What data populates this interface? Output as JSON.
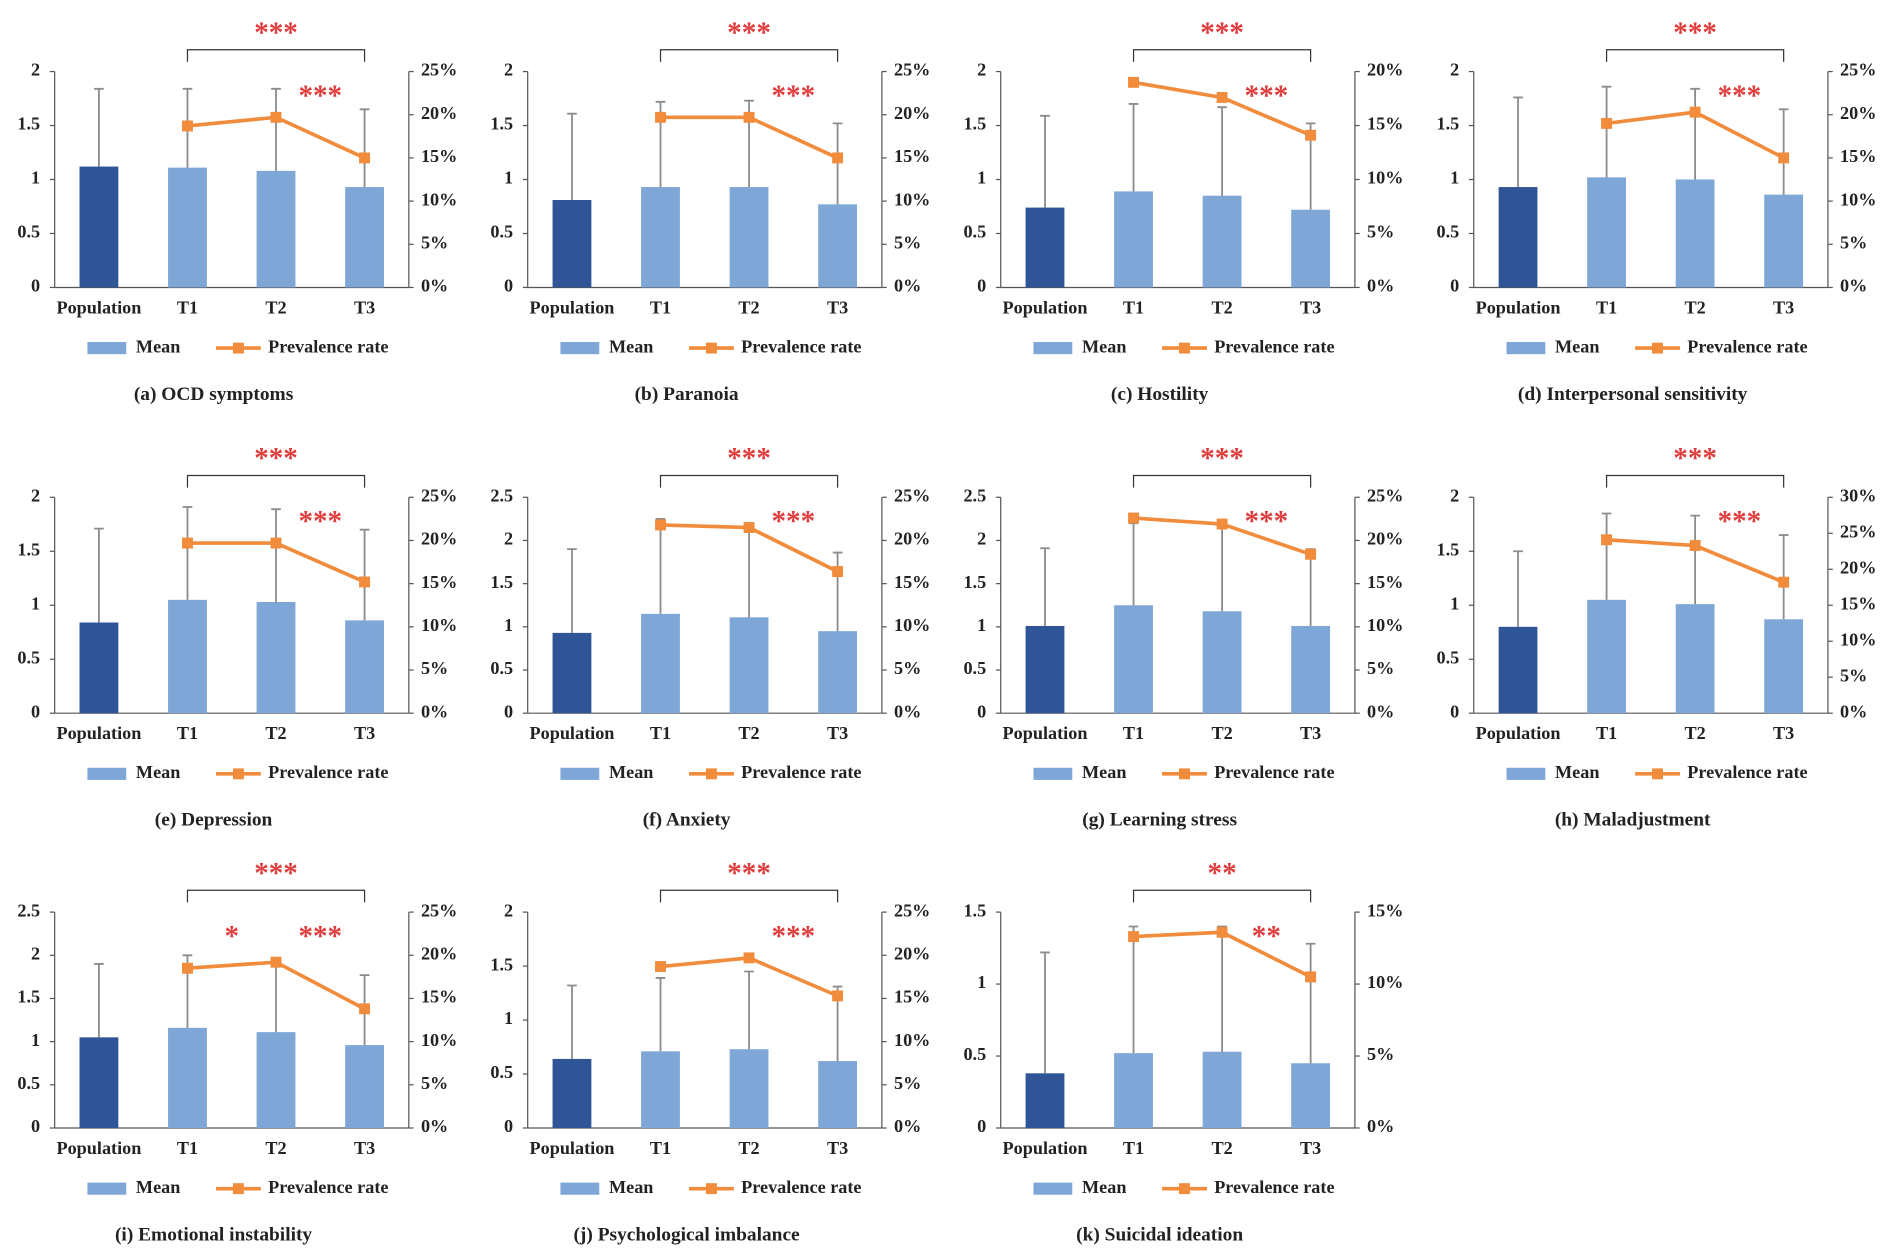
{
  "chart_data": [
    {
      "type": "bar",
      "title": "(a) OCD symptoms",
      "categories": [
        "Population",
        "T1",
        "T2",
        "T3"
      ],
      "series": [
        {
          "name": "Mean",
          "type": "bar",
          "color": "#7EA6D6",
          "colors": [
            "#2F5597",
            "#7EA6D6",
            "#7EA6D6",
            "#7EA6D6"
          ],
          "values": [
            1.12,
            1.11,
            1.08,
            0.93
          ],
          "errors": [
            0.72,
            0.73,
            0.76,
            0.72
          ]
        },
        {
          "name": "Prevalence rate",
          "type": "line",
          "axis": "y2",
          "color": "#F08C3C",
          "values": [
            null,
            18.7,
            19.7,
            15.0
          ]
        }
      ],
      "ylim": [
        0,
        2
      ],
      "yticks": [
        0,
        0.5,
        1,
        1.5,
        2
      ],
      "y2lim": [
        0,
        25
      ],
      "y2ticks": [
        {
          "value": 0,
          "label": "0%"
        },
        {
          "value": 5,
          "label": "5%"
        },
        {
          "value": 10,
          "label": "10%"
        },
        {
          "value": 15,
          "label": "15%"
        },
        {
          "value": 20,
          "label": "20%"
        },
        {
          "value": 25,
          "label": "25%"
        }
      ],
      "annotations": [
        {
          "text": "***",
          "from": "T1",
          "to": "T3",
          "style": "bracket"
        },
        {
          "text": "***",
          "from": "T2",
          "to": "T3",
          "style": "plain"
        }
      ]
    },
    {
      "type": "bar",
      "title": "(b) Paranoia",
      "categories": [
        "Population",
        "T1",
        "T2",
        "T3"
      ],
      "series": [
        {
          "name": "Mean",
          "type": "bar",
          "color": "#7EA6D6",
          "colors": [
            "#2F5597",
            "#7EA6D6",
            "#7EA6D6",
            "#7EA6D6"
          ],
          "values": [
            0.81,
            0.93,
            0.93,
            0.77
          ],
          "errors": [
            0.8,
            0.79,
            0.8,
            0.75
          ]
        },
        {
          "name": "Prevalence rate",
          "type": "line",
          "axis": "y2",
          "color": "#F08C3C",
          "values": [
            null,
            19.7,
            19.7,
            15.0
          ]
        }
      ],
      "ylim": [
        0,
        2
      ],
      "yticks": [
        0,
        0.5,
        1,
        1.5,
        2
      ],
      "y2lim": [
        0,
        25
      ],
      "y2ticks": [
        {
          "value": 0,
          "label": "0%"
        },
        {
          "value": 5,
          "label": "5%"
        },
        {
          "value": 10,
          "label": "10%"
        },
        {
          "value": 15,
          "label": "15%"
        },
        {
          "value": 20,
          "label": "20%"
        },
        {
          "value": 25,
          "label": "25%"
        }
      ],
      "annotations": [
        {
          "text": "***",
          "from": "T1",
          "to": "T3",
          "style": "bracket"
        },
        {
          "text": "***",
          "from": "T2",
          "to": "T3",
          "style": "plain"
        }
      ]
    },
    {
      "type": "bar",
      "title": "(c) Hostility",
      "categories": [
        "Population",
        "T1",
        "T2",
        "T3"
      ],
      "series": [
        {
          "name": "Mean",
          "type": "bar",
          "color": "#7EA6D6",
          "colors": [
            "#2F5597",
            "#7EA6D6",
            "#7EA6D6",
            "#7EA6D6"
          ],
          "values": [
            0.74,
            0.89,
            0.85,
            0.72
          ],
          "errors": [
            0.85,
            0.81,
            0.82,
            0.8
          ]
        },
        {
          "name": "Prevalence rate",
          "type": "line",
          "axis": "y2",
          "color": "#F08C3C",
          "values": [
            null,
            19.0,
            17.6,
            14.1
          ]
        }
      ],
      "ylim": [
        0,
        2
      ],
      "yticks": [
        0,
        0.5,
        1,
        1.5,
        2
      ],
      "y2lim": [
        0,
        20
      ],
      "y2ticks": [
        {
          "value": 0,
          "label": "0%"
        },
        {
          "value": 5,
          "label": "5%"
        },
        {
          "value": 10,
          "label": "10%"
        },
        {
          "value": 15,
          "label": "15%"
        },
        {
          "value": 20,
          "label": "20%"
        }
      ],
      "annotations": [
        {
          "text": "***",
          "from": "T1",
          "to": "T3",
          "style": "bracket"
        },
        {
          "text": "***",
          "from": "T2",
          "to": "T3",
          "style": "plain"
        }
      ]
    },
    {
      "type": "bar",
      "title": "(d) Interpersonal sensitivity",
      "categories": [
        "Population",
        "T1",
        "T2",
        "T3"
      ],
      "series": [
        {
          "name": "Mean",
          "type": "bar",
          "color": "#7EA6D6",
          "colors": [
            "#2F5597",
            "#7EA6D6",
            "#7EA6D6",
            "#7EA6D6"
          ],
          "values": [
            0.93,
            1.02,
            1.0,
            0.86
          ],
          "errors": [
            0.83,
            0.84,
            0.84,
            0.79
          ]
        },
        {
          "name": "Prevalence rate",
          "type": "line",
          "axis": "y2",
          "color": "#F08C3C",
          "values": [
            null,
            19.0,
            20.3,
            15.0
          ]
        }
      ],
      "ylim": [
        0,
        2
      ],
      "yticks": [
        0,
        0.5,
        1,
        1.5,
        2
      ],
      "y2lim": [
        0,
        25
      ],
      "y2ticks": [
        {
          "value": 0,
          "label": "0%"
        },
        {
          "value": 5,
          "label": "5%"
        },
        {
          "value": 10,
          "label": "10%"
        },
        {
          "value": 15,
          "label": "15%"
        },
        {
          "value": 20,
          "label": "20%"
        },
        {
          "value": 25,
          "label": "25%"
        }
      ],
      "annotations": [
        {
          "text": "***",
          "from": "T1",
          "to": "T3",
          "style": "bracket"
        },
        {
          "text": "***",
          "from": "T2",
          "to": "T3",
          "style": "plain"
        }
      ]
    },
    {
      "type": "bar",
      "title": "(e) Depression",
      "categories": [
        "Population",
        "T1",
        "T2",
        "T3"
      ],
      "series": [
        {
          "name": "Mean",
          "type": "bar",
          "color": "#7EA6D6",
          "colors": [
            "#2F5597",
            "#7EA6D6",
            "#7EA6D6",
            "#7EA6D6"
          ],
          "values": [
            0.84,
            1.05,
            1.03,
            0.86
          ],
          "errors": [
            0.87,
            0.86,
            0.86,
            0.84
          ]
        },
        {
          "name": "Prevalence rate",
          "type": "line",
          "axis": "y2",
          "color": "#F08C3C",
          "values": [
            null,
            19.7,
            19.7,
            15.2
          ]
        }
      ],
      "ylim": [
        0,
        2
      ],
      "yticks": [
        0,
        0.5,
        1,
        1.5,
        2
      ],
      "y2lim": [
        0,
        25
      ],
      "y2ticks": [
        {
          "value": 0,
          "label": "0%"
        },
        {
          "value": 5,
          "label": "5%"
        },
        {
          "value": 10,
          "label": "10%"
        },
        {
          "value": 15,
          "label": "15%"
        },
        {
          "value": 20,
          "label": "20%"
        },
        {
          "value": 25,
          "label": "25%"
        }
      ],
      "annotations": [
        {
          "text": "***",
          "from": "T1",
          "to": "T3",
          "style": "bracket"
        },
        {
          "text": "***",
          "from": "T2",
          "to": "T3",
          "style": "plain"
        }
      ]
    },
    {
      "type": "bar",
      "title": "(f) Anxiety",
      "categories": [
        "Population",
        "T1",
        "T2",
        "T3"
      ],
      "series": [
        {
          "name": "Mean",
          "type": "bar",
          "color": "#7EA6D6",
          "colors": [
            "#2F5597",
            "#7EA6D6",
            "#7EA6D6",
            "#7EA6D6"
          ],
          "values": [
            0.93,
            1.15,
            1.11,
            0.95
          ],
          "errors": [
            0.97,
            1.1,
            1.09,
            0.91
          ]
        },
        {
          "name": "Prevalence rate",
          "type": "line",
          "axis": "y2",
          "color": "#F08C3C",
          "values": [
            null,
            21.8,
            21.5,
            16.4
          ]
        }
      ],
      "ylim": [
        0,
        2.5
      ],
      "yticks": [
        0,
        0.5,
        1,
        1.5,
        2,
        2.5
      ],
      "y2lim": [
        0,
        25
      ],
      "y2ticks": [
        {
          "value": 0,
          "label": "0%"
        },
        {
          "value": 5,
          "label": "5%"
        },
        {
          "value": 10,
          "label": "10%"
        },
        {
          "value": 15,
          "label": "15%"
        },
        {
          "value": 20,
          "label": "20%"
        },
        {
          "value": 25,
          "label": "25%"
        }
      ],
      "annotations": [
        {
          "text": "***",
          "from": "T1",
          "to": "T3",
          "style": "bracket"
        },
        {
          "text": "***",
          "from": "T2",
          "to": "T3",
          "style": "plain"
        }
      ]
    },
    {
      "type": "bar",
      "title": "(g) Learning stress",
      "categories": [
        "Population",
        "T1",
        "T2",
        "T3"
      ],
      "series": [
        {
          "name": "Mean",
          "type": "bar",
          "color": "#7EA6D6",
          "colors": [
            "#2F5597",
            "#7EA6D6",
            "#7EA6D6",
            "#7EA6D6"
          ],
          "values": [
            1.01,
            1.25,
            1.18,
            1.01
          ],
          "errors": [
            0.9,
            0.95,
            1.02,
            0.89
          ]
        },
        {
          "name": "Prevalence rate",
          "type": "line",
          "axis": "y2",
          "color": "#F08C3C",
          "values": [
            null,
            22.6,
            21.9,
            18.4
          ]
        }
      ],
      "ylim": [
        0,
        2.5
      ],
      "yticks": [
        0,
        0.5,
        1,
        1.5,
        2,
        2.5
      ],
      "y2lim": [
        0,
        25
      ],
      "y2ticks": [
        {
          "value": 0,
          "label": "0%"
        },
        {
          "value": 5,
          "label": "5%"
        },
        {
          "value": 10,
          "label": "10%"
        },
        {
          "value": 15,
          "label": "15%"
        },
        {
          "value": 20,
          "label": "20%"
        },
        {
          "value": 25,
          "label": "25%"
        }
      ],
      "annotations": [
        {
          "text": "***",
          "from": "T1",
          "to": "T3",
          "style": "bracket"
        },
        {
          "text": "***",
          "from": "T2",
          "to": "T3",
          "style": "plain"
        }
      ]
    },
    {
      "type": "bar",
      "title": "(h) Maladjustment",
      "categories": [
        "Population",
        "T1",
        "T2",
        "T3"
      ],
      "series": [
        {
          "name": "Mean",
          "type": "bar",
          "color": "#7EA6D6",
          "colors": [
            "#2F5597",
            "#7EA6D6",
            "#7EA6D6",
            "#7EA6D6"
          ],
          "values": [
            0.8,
            1.05,
            1.01,
            0.87
          ],
          "errors": [
            0.7,
            0.8,
            0.82,
            0.78
          ]
        },
        {
          "name": "Prevalence rate",
          "type": "line",
          "axis": "y2",
          "color": "#F08C3C",
          "values": [
            null,
            24.1,
            23.3,
            18.2
          ]
        }
      ],
      "ylim": [
        0,
        2
      ],
      "yticks": [
        0,
        0.5,
        1,
        1.5,
        2
      ],
      "y2lim": [
        0,
        30
      ],
      "y2ticks": [
        {
          "value": 0,
          "label": "0%"
        },
        {
          "value": 5,
          "label": "5%"
        },
        {
          "value": 10,
          "label": "10%"
        },
        {
          "value": 15,
          "label": "15%"
        },
        {
          "value": 20,
          "label": "20%"
        },
        {
          "value": 25,
          "label": "25%"
        },
        {
          "value": 30,
          "label": "30%"
        }
      ],
      "annotations": [
        {
          "text": "***",
          "from": "T1",
          "to": "T3",
          "style": "bracket"
        },
        {
          "text": "***",
          "from": "T2",
          "to": "T3",
          "style": "plain"
        }
      ]
    },
    {
      "type": "bar",
      "title": "(i) Emotional instability",
      "categories": [
        "Population",
        "T1",
        "T2",
        "T3"
      ],
      "series": [
        {
          "name": "Mean",
          "type": "bar",
          "color": "#7EA6D6",
          "colors": [
            "#2F5597",
            "#7EA6D6",
            "#7EA6D6",
            "#7EA6D6"
          ],
          "values": [
            1.05,
            1.16,
            1.11,
            0.96
          ],
          "errors": [
            0.85,
            0.84,
            0.82,
            0.81
          ]
        },
        {
          "name": "Prevalence rate",
          "type": "line",
          "axis": "y2",
          "color": "#F08C3C",
          "values": [
            null,
            18.5,
            19.2,
            13.8
          ]
        }
      ],
      "ylim": [
        0,
        2.5
      ],
      "yticks": [
        0,
        0.5,
        1,
        1.5,
        2,
        2.5
      ],
      "y2lim": [
        0,
        25
      ],
      "y2ticks": [
        {
          "value": 0,
          "label": "0%"
        },
        {
          "value": 5,
          "label": "5%"
        },
        {
          "value": 10,
          "label": "10%"
        },
        {
          "value": 15,
          "label": "15%"
        },
        {
          "value": 20,
          "label": "20%"
        },
        {
          "value": 25,
          "label": "25%"
        }
      ],
      "annotations": [
        {
          "text": "***",
          "from": "T1",
          "to": "T3",
          "style": "bracket"
        },
        {
          "text": "*",
          "from": "T1",
          "to": "T2",
          "style": "plain"
        },
        {
          "text": "***",
          "from": "T2",
          "to": "T3",
          "style": "plain"
        }
      ]
    },
    {
      "type": "bar",
      "title": "(j) Psychological imbalance",
      "categories": [
        "Population",
        "T1",
        "T2",
        "T3"
      ],
      "series": [
        {
          "name": "Mean",
          "type": "bar",
          "color": "#7EA6D6",
          "colors": [
            "#2F5597",
            "#7EA6D6",
            "#7EA6D6",
            "#7EA6D6"
          ],
          "values": [
            0.64,
            0.71,
            0.73,
            0.62
          ],
          "errors": [
            0.68,
            0.68,
            0.72,
            0.69
          ]
        },
        {
          "name": "Prevalence rate",
          "type": "line",
          "axis": "y2",
          "color": "#F08C3C",
          "values": [
            null,
            18.7,
            19.7,
            15.3
          ]
        }
      ],
      "ylim": [
        0,
        2
      ],
      "yticks": [
        0,
        0.5,
        1,
        1.5,
        2
      ],
      "y2lim": [
        0,
        25
      ],
      "y2ticks": [
        {
          "value": 0,
          "label": "0%"
        },
        {
          "value": 5,
          "label": "5%"
        },
        {
          "value": 10,
          "label": "10%"
        },
        {
          "value": 15,
          "label": "15%"
        },
        {
          "value": 20,
          "label": "20%"
        },
        {
          "value": 25,
          "label": "25%"
        }
      ],
      "annotations": [
        {
          "text": "***",
          "from": "T1",
          "to": "T3",
          "style": "bracket"
        },
        {
          "text": "***",
          "from": "T2",
          "to": "T3",
          "style": "plain"
        }
      ]
    },
    {
      "type": "bar",
      "title": "(k)  Suicidal ideation",
      "categories": [
        "Population",
        "T1",
        "T2",
        "T3"
      ],
      "series": [
        {
          "name": "Mean",
          "type": "bar",
          "color": "#7EA6D6",
          "colors": [
            "#2F5597",
            "#7EA6D6",
            "#7EA6D6",
            "#7EA6D6"
          ],
          "values": [
            0.38,
            0.52,
            0.53,
            0.45
          ],
          "errors": [
            0.84,
            0.88,
            0.87,
            0.83
          ]
        },
        {
          "name": "Prevalence rate",
          "type": "line",
          "axis": "y2",
          "color": "#F08C3C",
          "values": [
            null,
            13.3,
            13.6,
            10.5
          ]
        }
      ],
      "ylim": [
        0,
        1.5
      ],
      "yticks": [
        0,
        0.5,
        1,
        1.5
      ],
      "y2lim": [
        0,
        15
      ],
      "y2ticks": [
        {
          "value": 0,
          "label": "0%"
        },
        {
          "value": 5,
          "label": "5%"
        },
        {
          "value": 10,
          "label": "10%"
        },
        {
          "value": 15,
          "label": "15%"
        }
      ],
      "annotations": [
        {
          "text": "**",
          "from": "T1",
          "to": "T3",
          "style": "bracket"
        },
        {
          "text": "**",
          "from": "T2",
          "to": "T3",
          "style": "plain"
        }
      ]
    }
  ]
}
